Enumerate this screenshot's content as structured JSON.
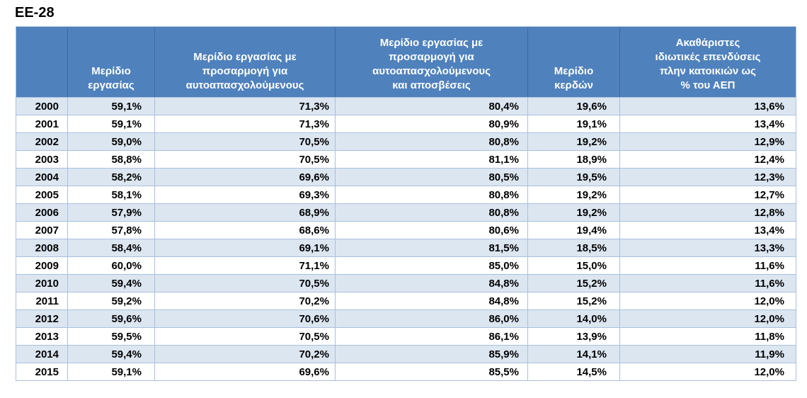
{
  "title": "EE-28",
  "colors": {
    "header_bg": "#4f81bd",
    "header_text": "#ffffff",
    "row_alt_bg": "#dce6f1",
    "row_bg": "#ffffff",
    "grid_border": "#a9c0de",
    "data_text": "#000000"
  },
  "chart_data": {
    "type": "table",
    "title": "EE-28",
    "columns": [
      "",
      "Μερίδιο\nεργασίας",
      "Μερίδιο εργασίας με\nπροσαρμογή για\nαυτοαπασχολούμενους",
      "Μερίδιο εργασίας με\nπροσαρμογή για\nαυτοαπασχολούμενους\nκαι αποσβέσεις",
      "Μερίδιο\nκερδών",
      "Ακαθάριστες\nιδιωτικές επενδύσεις\nπλην κατοικιών ως\n% του ΑΕΠ"
    ],
    "rows": [
      [
        "2000",
        "59,1%",
        "71,3%",
        "80,4%",
        "19,6%",
        "13,6%"
      ],
      [
        "2001",
        "59,1%",
        "71,3%",
        "80,9%",
        "19,1%",
        "13,4%"
      ],
      [
        "2002",
        "59,0%",
        "70,5%",
        "80,8%",
        "19,2%",
        "12,9%"
      ],
      [
        "2003",
        "58,8%",
        "70,5%",
        "81,1%",
        "18,9%",
        "12,4%"
      ],
      [
        "2004",
        "58,2%",
        "69,6%",
        "80,5%",
        "19,5%",
        "12,3%"
      ],
      [
        "2005",
        "58,1%",
        "69,3%",
        "80,8%",
        "19,2%",
        "12,7%"
      ],
      [
        "2006",
        "57,9%",
        "68,9%",
        "80,8%",
        "19,2%",
        "12,8%"
      ],
      [
        "2007",
        "57,8%",
        "68,6%",
        "80,6%",
        "19,4%",
        "13,4%"
      ],
      [
        "2008",
        "58,4%",
        "69,1%",
        "81,5%",
        "18,5%",
        "13,3%"
      ],
      [
        "2009",
        "60,0%",
        "71,1%",
        "85,0%",
        "15,0%",
        "11,6%"
      ],
      [
        "2010",
        "59,4%",
        "70,5%",
        "84,8%",
        "15,2%",
        "11,6%"
      ],
      [
        "2011",
        "59,2%",
        "70,2%",
        "84,8%",
        "15,2%",
        "12,0%"
      ],
      [
        "2012",
        "59,6%",
        "70,6%",
        "86,0%",
        "14,0%",
        "12,0%"
      ],
      [
        "2013",
        "59,5%",
        "70,5%",
        "86,1%",
        "13,9%",
        "11,8%"
      ],
      [
        "2014",
        "59,4%",
        "70,2%",
        "85,9%",
        "14,1%",
        "11,9%"
      ],
      [
        "2015",
        "59,1%",
        "69,6%",
        "85,5%",
        "14,5%",
        "12,0%"
      ]
    ]
  }
}
